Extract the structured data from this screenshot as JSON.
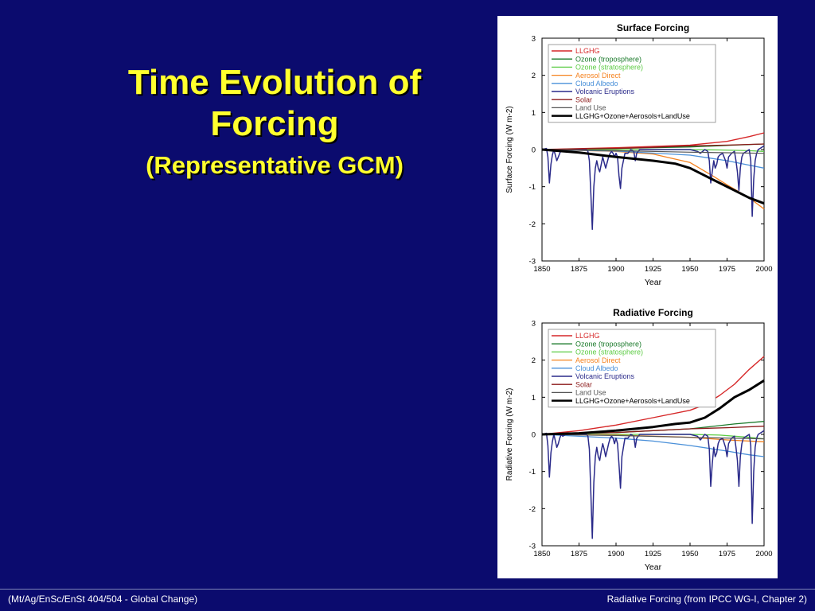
{
  "slide": {
    "title_line1": "Time Evolution of",
    "title_line2": "Forcing",
    "title_line3": "(Representative GCM)"
  },
  "footer": {
    "left": "(Mt/Ag/EnSc/EnSt 404/504 - Global Change)",
    "right": "Radiative Forcing (from IPCC WG-I, Chapter 2)"
  },
  "chart_data": [
    {
      "type": "line",
      "title": "Surface Forcing",
      "xlabel": "Year",
      "ylabel": "Surface Forcing (W m-2)",
      "xlim": [
        1850,
        2000
      ],
      "ylim": [
        -3,
        3
      ],
      "xticks": [
        1850,
        1875,
        1900,
        1925,
        1950,
        1975,
        2000
      ],
      "yticks": [
        3,
        2,
        1,
        0,
        -1,
        -2,
        -3
      ],
      "grid": false,
      "legend_position": "top-left",
      "series": [
        {
          "name": "LLGHG",
          "color": "#d62728",
          "width": 1.4,
          "x": [
            1850,
            1900,
            1950,
            1975,
            1990,
            2000
          ],
          "y": [
            0,
            0.05,
            0.12,
            0.22,
            0.35,
            0.45
          ]
        },
        {
          "name": "Ozone (troposphere)",
          "color": "#1a7a2a",
          "width": 1.3,
          "x": [
            1850,
            1900,
            1950,
            1980,
            2000
          ],
          "y": [
            0,
            0.03,
            0.07,
            0.12,
            0.15
          ]
        },
        {
          "name": "Ozone (stratosphere)",
          "color": "#5ccc44",
          "width": 1.3,
          "x": [
            1850,
            1950,
            1970,
            1990,
            2000
          ],
          "y": [
            0,
            0,
            -0.01,
            -0.03,
            -0.05
          ]
        },
        {
          "name": "Aerosol Direct",
          "color": "#f5821f",
          "width": 1.3,
          "x": [
            1850,
            1900,
            1925,
            1950,
            1965,
            1975,
            1990,
            2000
          ],
          "y": [
            0,
            -0.05,
            -0.12,
            -0.35,
            -0.7,
            -0.95,
            -1.3,
            -1.6
          ]
        },
        {
          "name": "Cloud Albedo",
          "color": "#4a90d9",
          "width": 1.3,
          "x": [
            1850,
            1900,
            1950,
            1975,
            1990,
            2000
          ],
          "y": [
            0,
            -0.04,
            -0.15,
            -0.3,
            -0.42,
            -0.5
          ]
        },
        {
          "name": "Volcanic Eruptions",
          "color": "#2a2a8a",
          "width": 1.5,
          "x": [
            1850,
            1853,
            1854,
            1855,
            1856,
            1857,
            1858,
            1860,
            1861,
            1862,
            1863,
            1864,
            1866,
            1870,
            1875,
            1880,
            1881,
            1882,
            1883,
            1884,
            1885,
            1886,
            1887,
            1888,
            1889,
            1890,
            1891,
            1892,
            1893,
            1895,
            1896,
            1897,
            1898,
            1899,
            1900,
            1901,
            1902,
            1903,
            1904,
            1905,
            1906,
            1908,
            1910,
            1912,
            1913,
            1914,
            1916,
            1918,
            1920,
            1930,
            1940,
            1950,
            1955,
            1957,
            1960,
            1962,
            1963,
            1964,
            1965,
            1966,
            1967,
            1968,
            1969,
            1970,
            1972,
            1974,
            1975,
            1976,
            1978,
            1980,
            1981,
            1982,
            1983,
            1984,
            1985,
            1986,
            1990,
            1991,
            1992,
            1993,
            1994,
            1995,
            1996,
            1998,
            2000
          ],
          "y": [
            0,
            0.03,
            -0.2,
            -0.9,
            -0.4,
            -0.15,
            0,
            -0.3,
            -0.2,
            -0.1,
            0,
            -0.05,
            0,
            0,
            0,
            0,
            -0.05,
            -0.3,
            -1.2,
            -2.15,
            -1.0,
            -0.5,
            -0.3,
            -0.5,
            -0.6,
            -0.4,
            -0.2,
            -0.35,
            -0.5,
            -0.2,
            -0.1,
            -0.05,
            -0.1,
            -0.2,
            -0.1,
            -0.2,
            -0.7,
            -1.05,
            -0.5,
            -0.3,
            -0.1,
            -0.1,
            0,
            -0.05,
            -0.3,
            -0.1,
            0,
            0,
            0,
            0,
            0,
            0,
            -0.05,
            -0.1,
            0,
            -0.05,
            -0.3,
            -0.9,
            -0.6,
            -0.3,
            -0.5,
            -0.4,
            -0.2,
            -0.15,
            -0.1,
            -0.3,
            -0.5,
            -0.2,
            -0.1,
            -0.05,
            -0.3,
            -0.6,
            -1.1,
            -0.5,
            -0.2,
            -0.1,
            0,
            -0.3,
            -1.8,
            -0.8,
            -0.3,
            -0.1,
            0,
            0.05,
            0.1
          ]
        },
        {
          "name": "Solar",
          "color": "#8b1a1a",
          "width": 1.3,
          "x": [
            1850,
            1875,
            1900,
            1925,
            1950,
            1975,
            2000
          ],
          "y": [
            0,
            0.02,
            0.03,
            0.06,
            0.1,
            0.12,
            0.15
          ]
        },
        {
          "name": "Land Use",
          "color": "#555555",
          "width": 1.2,
          "x": [
            1850,
            1900,
            1950,
            2000
          ],
          "y": [
            0,
            -0.03,
            -0.07,
            -0.1
          ]
        },
        {
          "name": "LLGHG+Ozone+Aerosols+LandUse",
          "color": "#000000",
          "width": 3,
          "x": [
            1850,
            1875,
            1900,
            1925,
            1940,
            1950,
            1960,
            1970,
            1980,
            1990,
            2000
          ],
          "y": [
            0,
            -0.08,
            -0.2,
            -0.3,
            -0.38,
            -0.5,
            -0.7,
            -0.9,
            -1.1,
            -1.3,
            -1.45
          ]
        }
      ]
    },
    {
      "type": "line",
      "title": "Radiative Forcing",
      "xlabel": "Year",
      "ylabel": "Radiative Forcing (W m-2)",
      "xlim": [
        1850,
        2000
      ],
      "ylim": [
        -3,
        3
      ],
      "xticks": [
        1850,
        1875,
        1900,
        1925,
        1950,
        1975,
        2000
      ],
      "yticks": [
        3,
        2,
        1,
        0,
        -1,
        -2,
        -3
      ],
      "grid": false,
      "legend_position": "top-left",
      "series": [
        {
          "name": "LLGHG",
          "color": "#d62728",
          "width": 1.4,
          "x": [
            1850,
            1875,
            1900,
            1925,
            1950,
            1960,
            1970,
            1980,
            1990,
            2000
          ],
          "y": [
            0,
            0.1,
            0.25,
            0.45,
            0.65,
            0.8,
            1.05,
            1.35,
            1.75,
            2.1
          ]
        },
        {
          "name": "Ozone (troposphere)",
          "color": "#1a7a2a",
          "width": 1.3,
          "x": [
            1850,
            1900,
            1950,
            1980,
            2000
          ],
          "y": [
            0,
            0.05,
            0.15,
            0.28,
            0.35
          ]
        },
        {
          "name": "Ozone (stratosphere)",
          "color": "#5ccc44",
          "width": 1.3,
          "x": [
            1850,
            1950,
            1970,
            1990,
            2000
          ],
          "y": [
            0,
            0,
            -0.02,
            -0.08,
            -0.12
          ]
        },
        {
          "name": "Aerosol Direct",
          "color": "#f5821f",
          "width": 1.3,
          "x": [
            1850,
            1900,
            1950,
            1975,
            2000
          ],
          "y": [
            0,
            -0.02,
            -0.08,
            -0.15,
            -0.2
          ]
        },
        {
          "name": "Cloud Albedo",
          "color": "#4a90d9",
          "width": 1.3,
          "x": [
            1850,
            1900,
            1925,
            1950,
            1975,
            1990,
            2000
          ],
          "y": [
            0,
            -0.1,
            -0.18,
            -0.3,
            -0.45,
            -0.55,
            -0.6
          ]
        },
        {
          "name": "Volcanic Eruptions",
          "color": "#2a2a8a",
          "width": 1.5,
          "x": [
            1850,
            1853,
            1854,
            1855,
            1856,
            1857,
            1858,
            1860,
            1861,
            1862,
            1863,
            1864,
            1866,
            1870,
            1875,
            1880,
            1881,
            1882,
            1883,
            1884,
            1885,
            1886,
            1887,
            1888,
            1889,
            1890,
            1891,
            1892,
            1893,
            1895,
            1896,
            1897,
            1898,
            1899,
            1900,
            1901,
            1902,
            1903,
            1904,
            1905,
            1906,
            1908,
            1910,
            1912,
            1913,
            1914,
            1916,
            1918,
            1920,
            1930,
            1940,
            1950,
            1955,
            1957,
            1960,
            1962,
            1963,
            1964,
            1965,
            1966,
            1967,
            1968,
            1969,
            1970,
            1972,
            1974,
            1975,
            1976,
            1978,
            1980,
            1981,
            1982,
            1983,
            1984,
            1985,
            1986,
            1990,
            1991,
            1992,
            1993,
            1994,
            1995,
            1996,
            1998,
            2000
          ],
          "y": [
            0,
            0.03,
            -0.3,
            -1.15,
            -0.5,
            -0.2,
            0,
            -0.35,
            -0.25,
            -0.1,
            0,
            -0.05,
            0,
            0,
            0,
            0,
            -0.05,
            -0.4,
            -1.6,
            -2.8,
            -1.3,
            -0.6,
            -0.35,
            -0.6,
            -0.7,
            -0.45,
            -0.25,
            -0.4,
            -0.6,
            -0.25,
            -0.1,
            -0.05,
            -0.1,
            -0.25,
            -0.1,
            -0.25,
            -0.8,
            -1.45,
            -0.6,
            -0.35,
            -0.1,
            -0.1,
            0,
            -0.05,
            -0.35,
            -0.1,
            0,
            0,
            0,
            0,
            0,
            0,
            -0.05,
            -0.15,
            0,
            -0.05,
            -0.4,
            -1.4,
            -0.8,
            -0.35,
            -0.6,
            -0.5,
            -0.25,
            -0.15,
            -0.1,
            -0.35,
            -0.6,
            -0.25,
            -0.1,
            -0.05,
            -0.35,
            -0.7,
            -1.4,
            -0.6,
            -0.25,
            -0.1,
            0,
            -0.3,
            -2.4,
            -1.0,
            -0.35,
            -0.1,
            0,
            0.05,
            0.1
          ]
        },
        {
          "name": "Solar",
          "color": "#8b1a1a",
          "width": 1.3,
          "x": [
            1850,
            1875,
            1900,
            1925,
            1950,
            1975,
            2000
          ],
          "y": [
            0,
            0.03,
            0.05,
            0.1,
            0.15,
            0.18,
            0.22
          ]
        },
        {
          "name": "Land Use",
          "color": "#555555",
          "width": 1.2,
          "x": [
            1850,
            1900,
            1950,
            2000
          ],
          "y": [
            0,
            -0.03,
            -0.08,
            -0.12
          ]
        },
        {
          "name": "LLGHG+Ozone+Aerosols+LandUse",
          "color": "#000000",
          "width": 3,
          "x": [
            1850,
            1875,
            1900,
            1925,
            1940,
            1950,
            1960,
            1970,
            1980,
            1990,
            2000
          ],
          "y": [
            0,
            0.03,
            0.1,
            0.2,
            0.28,
            0.32,
            0.45,
            0.7,
            1.0,
            1.2,
            1.45
          ]
        }
      ]
    }
  ]
}
